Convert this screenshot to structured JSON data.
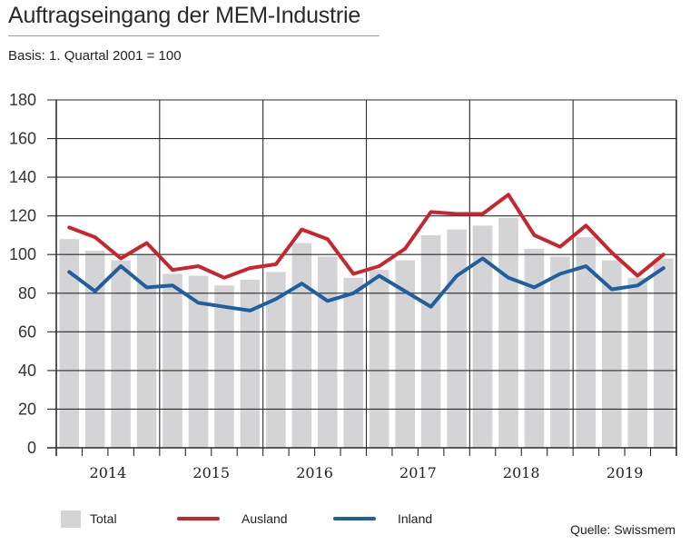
{
  "header": {
    "title": "Auftragseingang der MEM-Industrie",
    "subtitle": "Basis: 1. Quartal 2001 = 100"
  },
  "legend": {
    "items": [
      {
        "label": "Total",
        "kind": "bar",
        "color": "#d4d4d6"
      },
      {
        "label": "Ausland",
        "kind": "line",
        "color": "#c8262e"
      },
      {
        "label": "Inland",
        "kind": "line",
        "color": "#1f5fa0"
      }
    ]
  },
  "footer": {
    "source": "Quelle: Swissmem"
  },
  "chart_data": {
    "type": "bar",
    "title": "Auftragseingang der MEM-Industrie",
    "subtitle": "Basis: 1. Quartal 2001 = 100",
    "xlabel": "",
    "ylabel": "",
    "ylim": [
      0,
      180
    ],
    "yticks": [
      0,
      20,
      40,
      60,
      80,
      100,
      120,
      140,
      160,
      180
    ],
    "grid": true,
    "legend_position": "bottom",
    "year_labels": [
      "2014",
      "2015",
      "2016",
      "2017",
      "2018",
      "2019"
    ],
    "quarters_per_year": 4,
    "categories": [
      "2014 Q1",
      "2014 Q2",
      "2014 Q3",
      "2014 Q4",
      "2015 Q1",
      "2015 Q2",
      "2015 Q3",
      "2015 Q4",
      "2016 Q1",
      "2016 Q2",
      "2016 Q3",
      "2016 Q4",
      "2017 Q1",
      "2017 Q2",
      "2017 Q3",
      "2017 Q4",
      "2018 Q1",
      "2018 Q2",
      "2018 Q3",
      "2018 Q4",
      "2019 Q1",
      "2019 Q2",
      "2019 Q3",
      "2019 Q4"
    ],
    "series": [
      {
        "name": "Total",
        "type": "bar",
        "color": "#d4d4d6",
        "values": [
          108,
          102,
          97,
          100,
          90,
          89,
          84,
          87,
          91,
          106,
          99,
          88,
          92,
          97,
          110,
          113,
          115,
          119,
          103,
          99,
          109,
          97,
          88,
          98
        ]
      },
      {
        "name": "Ausland",
        "type": "line",
        "color": "#c8262e",
        "values": [
          114,
          109,
          98,
          106,
          92,
          94,
          88,
          93,
          95,
          113,
          108,
          90,
          94,
          103,
          122,
          121,
          121,
          131,
          110,
          104,
          115,
          101,
          89,
          100
        ]
      },
      {
        "name": "Inland",
        "type": "line",
        "color": "#1f5fa0",
        "values": [
          91,
          81,
          94,
          83,
          84,
          75,
          73,
          71,
          77,
          85,
          76,
          80,
          89,
          81,
          73,
          89,
          98,
          88,
          83,
          90,
          94,
          82,
          84,
          93
        ]
      }
    ],
    "source": "Quelle: Swissmem"
  }
}
